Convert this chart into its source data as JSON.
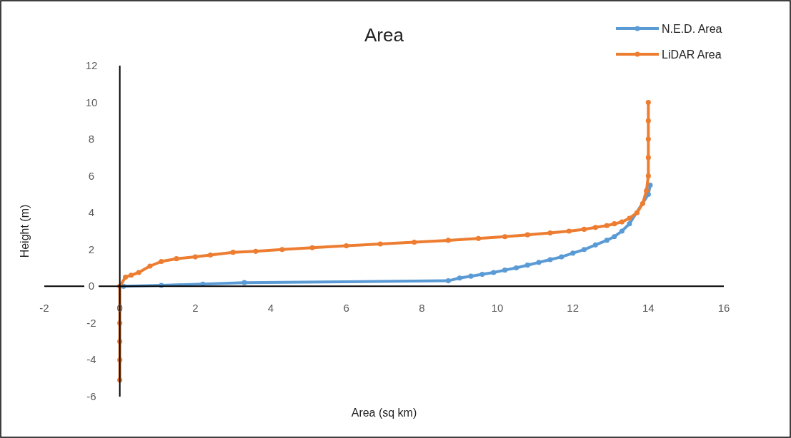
{
  "chart_data": {
    "type": "line",
    "title": "Area",
    "xlabel": "Area (sq km)",
    "ylabel": "Height (m)",
    "xlim": [
      -2,
      16
    ],
    "xticks": [
      -2,
      0,
      2,
      4,
      6,
      8,
      10,
      12,
      14,
      16
    ],
    "ylim": [
      -6,
      12
    ],
    "yticks": [
      -6,
      -4,
      -2,
      0,
      2,
      4,
      6,
      8,
      10,
      12
    ],
    "grid": false,
    "legend": "top right",
    "marker": "circle",
    "line_style": "solid",
    "series": [
      {
        "name": "N.E.D. Area",
        "color": "#5b9bd5",
        "x": [
          0.1,
          1.1,
          2.2,
          3.3,
          8.7,
          9.0,
          9.3,
          9.6,
          9.9,
          10.2,
          10.5,
          10.8,
          11.1,
          11.4,
          11.7,
          12.0,
          12.3,
          12.6,
          12.9,
          13.1,
          13.3,
          13.5,
          14.0,
          14.05
        ],
        "values": [
          0,
          0.05,
          0.12,
          0.2,
          0.3,
          0.45,
          0.55,
          0.65,
          0.75,
          0.88,
          1.0,
          1.15,
          1.3,
          1.45,
          1.6,
          1.8,
          2.0,
          2.25,
          2.5,
          2.7,
          3.0,
          3.4,
          5.0,
          5.5
        ]
      },
      {
        "name": "LiDAR Area",
        "color": "#ed7d31",
        "x": [
          0,
          0,
          0,
          0,
          0,
          0.15,
          0.3,
          0.5,
          0.8,
          1.1,
          1.5,
          2.0,
          2.4,
          3.0,
          3.6,
          4.3,
          5.1,
          6.0,
          6.9,
          7.8,
          8.7,
          9.5,
          10.2,
          10.8,
          11.4,
          11.9,
          12.3,
          12.6,
          12.9,
          13.1,
          13.3,
          13.5,
          13.7,
          13.85,
          13.95,
          14.0,
          14.0,
          14.0,
          14.0,
          14.0
        ],
        "values": [
          -5.1,
          -4,
          -3,
          -2,
          0,
          0.5,
          0.6,
          0.75,
          1.1,
          1.35,
          1.5,
          1.6,
          1.7,
          1.85,
          1.9,
          2.0,
          2.1,
          2.2,
          2.3,
          2.4,
          2.5,
          2.6,
          2.7,
          2.8,
          2.9,
          3.0,
          3.1,
          3.2,
          3.3,
          3.4,
          3.5,
          3.7,
          4.0,
          4.5,
          5.2,
          6,
          7,
          8,
          9,
          10
        ]
      }
    ]
  }
}
